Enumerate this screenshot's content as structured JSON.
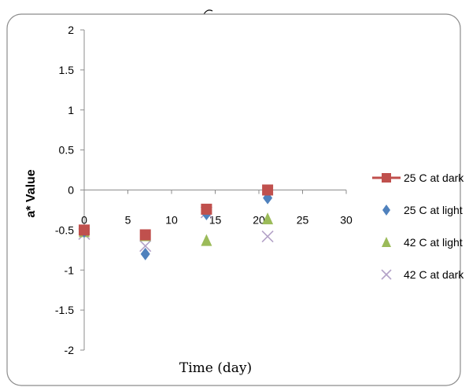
{
  "chart_data": {
    "type": "scatter",
    "title": "",
    "xlabel": "Time (day)",
    "ylabel": "a* Value",
    "xlim": [
      0,
      30
    ],
    "ylim": [
      -2,
      2
    ],
    "xticks": [
      "0",
      "5",
      "10",
      "15",
      "20",
      "25",
      "30"
    ],
    "yticks": [
      "2",
      "1.5",
      "1",
      "0.5",
      "0",
      "-0.5",
      "-1",
      "-1.5",
      "-2"
    ],
    "xtick_values": [
      0,
      5,
      10,
      15,
      20,
      25,
      30
    ],
    "ytick_values": [
      2,
      1.5,
      1,
      0.5,
      0,
      -0.5,
      -1,
      -1.5,
      -2
    ],
    "grid": false,
    "legend_position": "right",
    "series": [
      {
        "name": "25 C at dark",
        "marker": "square",
        "line_legend": true,
        "color": "#c0504d",
        "x": [
          0,
          7,
          14,
          21
        ],
        "y": [
          -0.5,
          -0.56,
          -0.24,
          0.0
        ]
      },
      {
        "name": "25 C at light",
        "marker": "diamond",
        "line_legend": false,
        "color": "#4f81bd",
        "x": [
          0,
          7,
          14,
          21
        ],
        "y": [
          -0.52,
          -0.8,
          -0.3,
          -0.1
        ]
      },
      {
        "name": "42 C at light",
        "marker": "triangle",
        "line_legend": false,
        "color": "#9bbb59",
        "x": [
          0,
          7,
          14,
          21
        ],
        "y": [
          -0.52,
          -0.57,
          -0.63,
          -0.36
        ]
      },
      {
        "name": "42 C at dark",
        "marker": "x",
        "line_legend": false,
        "color": "#b3a2c7",
        "x": [
          0,
          7,
          14,
          21
        ],
        "y": [
          -0.55,
          -0.7,
          -0.28,
          -0.58
        ]
      }
    ]
  }
}
